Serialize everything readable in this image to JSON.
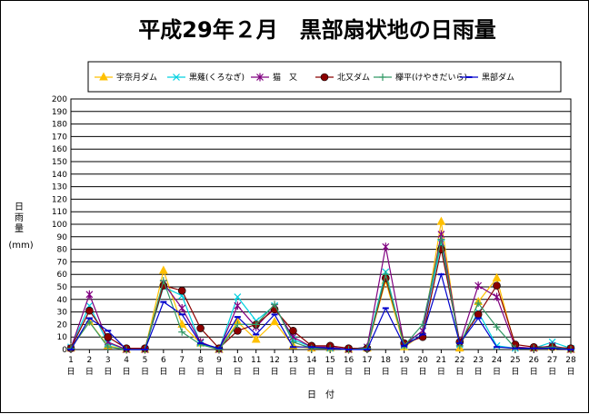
{
  "chart_data": {
    "type": "line",
    "title": "平成29年２月　黒部扇状地の日雨量",
    "xlabel": "日　付",
    "ylabel": "日雨量",
    "yunit": "(mm)",
    "ylim": [
      0,
      200
    ],
    "ytick_step": 10,
    "grid": true,
    "legend_position": "top",
    "x_day_char": "日",
    "categories": [
      "1",
      "2",
      "3",
      "4",
      "5",
      "6",
      "7",
      "8",
      "9",
      "10",
      "11",
      "12",
      "13",
      "14",
      "15",
      "16",
      "17",
      "18",
      "19",
      "20",
      "21",
      "22",
      "23",
      "24",
      "25",
      "26",
      "27",
      "28"
    ],
    "series": [
      {
        "name": "宇奈月ダム",
        "color": "#ffc000",
        "marker": "triangle",
        "values": [
          1,
          22,
          3,
          0,
          0,
          63,
          20,
          5,
          0,
          22,
          8,
          22,
          3,
          1,
          1,
          0,
          1,
          55,
          2,
          12,
          102,
          1,
          38,
          57,
          2,
          1,
          2,
          0
        ]
      },
      {
        "name": "黒薙(くろなぎ)",
        "color": "#00d0e0",
        "marker": "x",
        "values": [
          2,
          35,
          5,
          0,
          0,
          50,
          43,
          5,
          0,
          42,
          23,
          35,
          8,
          2,
          1,
          0,
          2,
          62,
          3,
          15,
          85,
          4,
          30,
          3,
          1,
          1,
          6,
          1
        ]
      },
      {
        "name": "猫　又",
        "color": "#800080",
        "marker": "star",
        "values": [
          1,
          44,
          6,
          0,
          0,
          53,
          33,
          6,
          0,
          35,
          18,
          34,
          10,
          2,
          2,
          0,
          2,
          82,
          4,
          15,
          92,
          5,
          51,
          42,
          2,
          1,
          3,
          0
        ]
      },
      {
        "name": "北又ダム",
        "color": "#8b0000",
        "marker": "circle",
        "values": [
          1,
          31,
          10,
          1,
          1,
          51,
          47,
          17,
          1,
          15,
          20,
          32,
          15,
          3,
          3,
          1,
          1,
          57,
          5,
          10,
          80,
          6,
          28,
          51,
          4,
          2,
          2,
          1
        ]
      },
      {
        "name": "欅平(けやきだいら)",
        "color": "#339966",
        "marker": "plus",
        "values": [
          1,
          22,
          2,
          0,
          0,
          55,
          14,
          4,
          0,
          20,
          20,
          36,
          6,
          1,
          1,
          0,
          1,
          60,
          3,
          20,
          88,
          3,
          37,
          18,
          1,
          1,
          2,
          0
        ]
      },
      {
        "name": "黒部ダム",
        "color": "#0000cc",
        "marker": "dash",
        "values": [
          0,
          25,
          15,
          0,
          0,
          38,
          28,
          5,
          1,
          26,
          12,
          28,
          2,
          2,
          1,
          0,
          0,
          33,
          3,
          12,
          60,
          5,
          25,
          2,
          1,
          1,
          1,
          0
        ]
      }
    ]
  }
}
